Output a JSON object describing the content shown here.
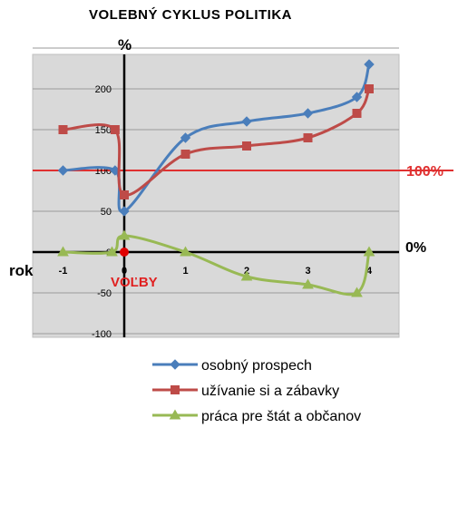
{
  "chart_data": {
    "type": "line",
    "title": "VOLEBNÝ  CYKLUS  POLITIKA",
    "ylabel": "%",
    "xlabel": "rok",
    "ylim": [
      -100,
      250
    ],
    "xlim": [
      -1.5,
      5
    ],
    "x_ticks": [
      "-1",
      "0",
      "1",
      "2",
      "3",
      "4"
    ],
    "y_ticks": [
      "-100",
      "-50",
      "0",
      "50",
      "100",
      "150",
      "200"
    ],
    "reference_line": {
      "value": 100,
      "label": "100%",
      "color": "#e03030"
    },
    "zero_label": "0%",
    "marker_label": "VOĽBY",
    "marker": {
      "x": 0,
      "y": 0,
      "color": "#e00000"
    },
    "grid": true,
    "legend_position": "bottom",
    "series": [
      {
        "name": "osobný prospech",
        "color": "#4a7ebb",
        "marker": "diamond",
        "points": [
          [
            -1,
            100
          ],
          [
            -0.15,
            100
          ],
          [
            0,
            50
          ],
          [
            1,
            140
          ],
          [
            2,
            160
          ],
          [
            3,
            170
          ],
          [
            3.8,
            190
          ],
          [
            4,
            230
          ]
        ]
      },
      {
        "name": "užívanie si a zábavky",
        "color": "#be4b48",
        "marker": "square",
        "points": [
          [
            -1,
            150
          ],
          [
            -0.15,
            150
          ],
          [
            0,
            70
          ],
          [
            1,
            120
          ],
          [
            2,
            130
          ],
          [
            3,
            140
          ],
          [
            3.8,
            170
          ],
          [
            4,
            200
          ]
        ]
      },
      {
        "name": "práca pre štát  a občanov",
        "color": "#98b954",
        "marker": "triangle",
        "points": [
          [
            -1,
            0
          ],
          [
            -0.2,
            0
          ],
          [
            0,
            20
          ],
          [
            1,
            0
          ],
          [
            2,
            -30
          ],
          [
            3,
            -40
          ],
          [
            3.8,
            -50
          ],
          [
            4,
            0
          ]
        ]
      }
    ]
  }
}
